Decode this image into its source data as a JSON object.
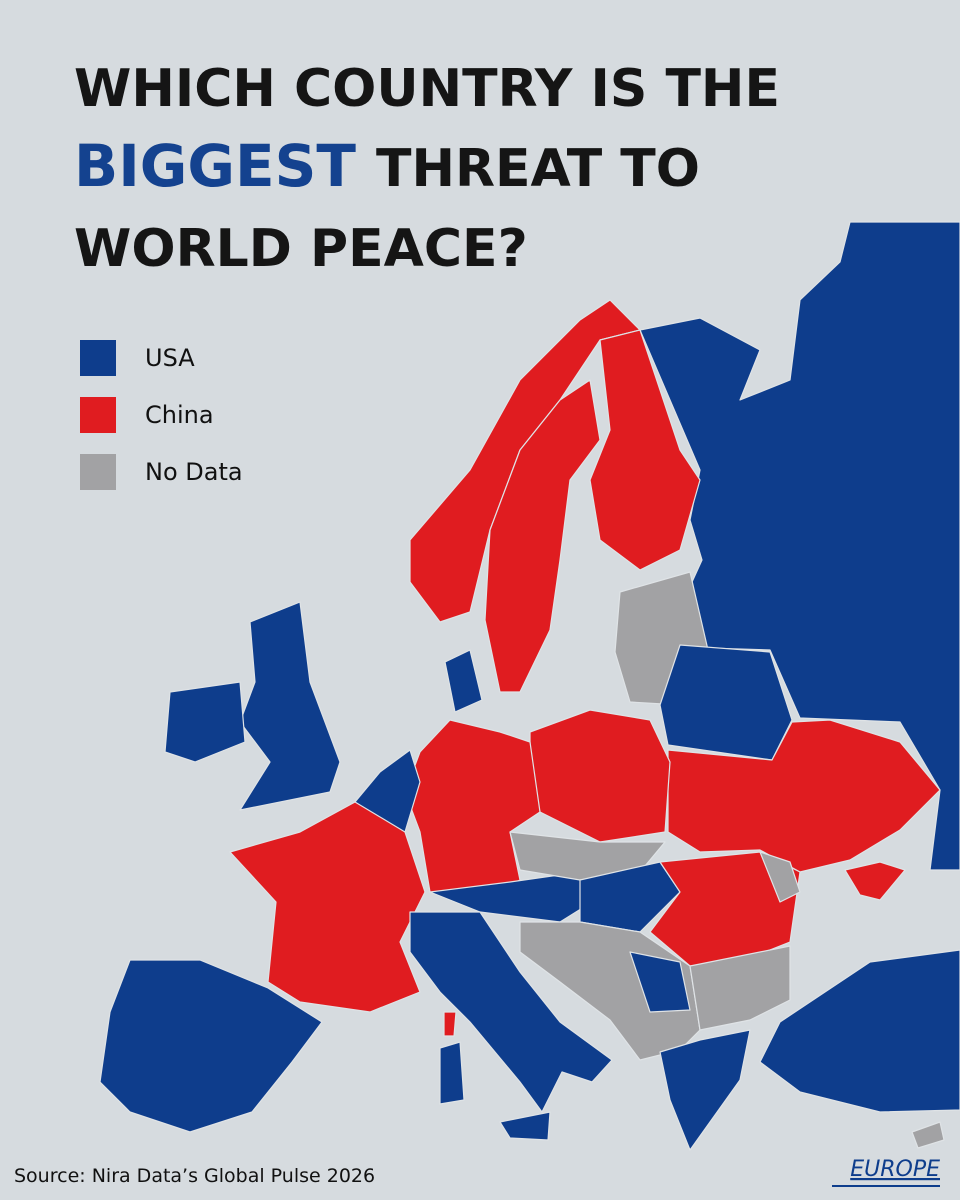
{
  "title": {
    "line1": "WHICH COUNTRY IS THE",
    "highlight": "BIGGEST",
    "line2_rest": "THREAT TO",
    "line3": "WORLD PEACE?",
    "highlight_color": "#14428f"
  },
  "legend": [
    {
      "label": "USA",
      "color": "#0e3d8c"
    },
    {
      "label": "China",
      "color": "#e01c20"
    },
    {
      "label": "No Data",
      "color": "#a2a2a4"
    }
  ],
  "source": "Source:  Nira Data’s Global Pulse 2026",
  "region": "EUROPE"
}
